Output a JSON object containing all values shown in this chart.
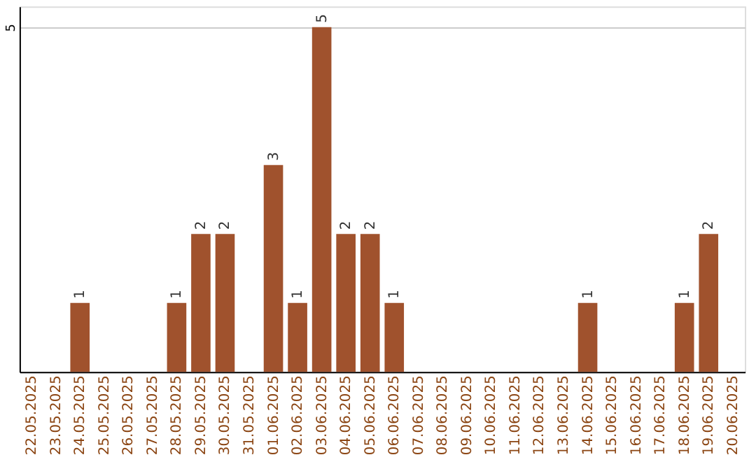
{
  "chart_data": {
    "type": "bar",
    "categories": [
      "22.05.2025",
      "23.05.2025",
      "24.05.2025",
      "25.05.2025",
      "26.05.2025",
      "27.05.2025",
      "28.05.2025",
      "29.05.2025",
      "30.05.2025",
      "31.05.2025",
      "01.06.2025",
      "02.06.2025",
      "03.06.2025",
      "04.06.2025",
      "05.06.2025",
      "06.06.2025",
      "07.06.2025",
      "08.06.2025",
      "09.06.2025",
      "10.06.2025",
      "11.06.2025",
      "12.06.2025",
      "13.06.2025",
      "14.06.2025",
      "15.06.2025",
      "16.06.2025",
      "17.06.2025",
      "18.06.2025",
      "19.06.2025",
      "20.06.2025"
    ],
    "values": [
      0,
      0,
      1,
      0,
      0,
      0,
      1,
      2,
      2,
      0,
      3,
      1,
      5,
      2,
      2,
      1,
      0,
      0,
      0,
      0,
      0,
      0,
      0,
      1,
      0,
      0,
      0,
      1,
      2,
      0
    ],
    "value_labels": [
      null,
      null,
      "1",
      null,
      null,
      null,
      "1",
      "2",
      "2",
      null,
      "3",
      "1",
      "5",
      "2",
      "2",
      "1",
      null,
      null,
      null,
      null,
      null,
      null,
      null,
      "1",
      null,
      null,
      null,
      "1",
      "2",
      null
    ],
    "color": "#a0522d",
    "ylim": [
      0,
      5.3
    ],
    "yticks": [
      5
    ],
    "grid": "y"
  }
}
